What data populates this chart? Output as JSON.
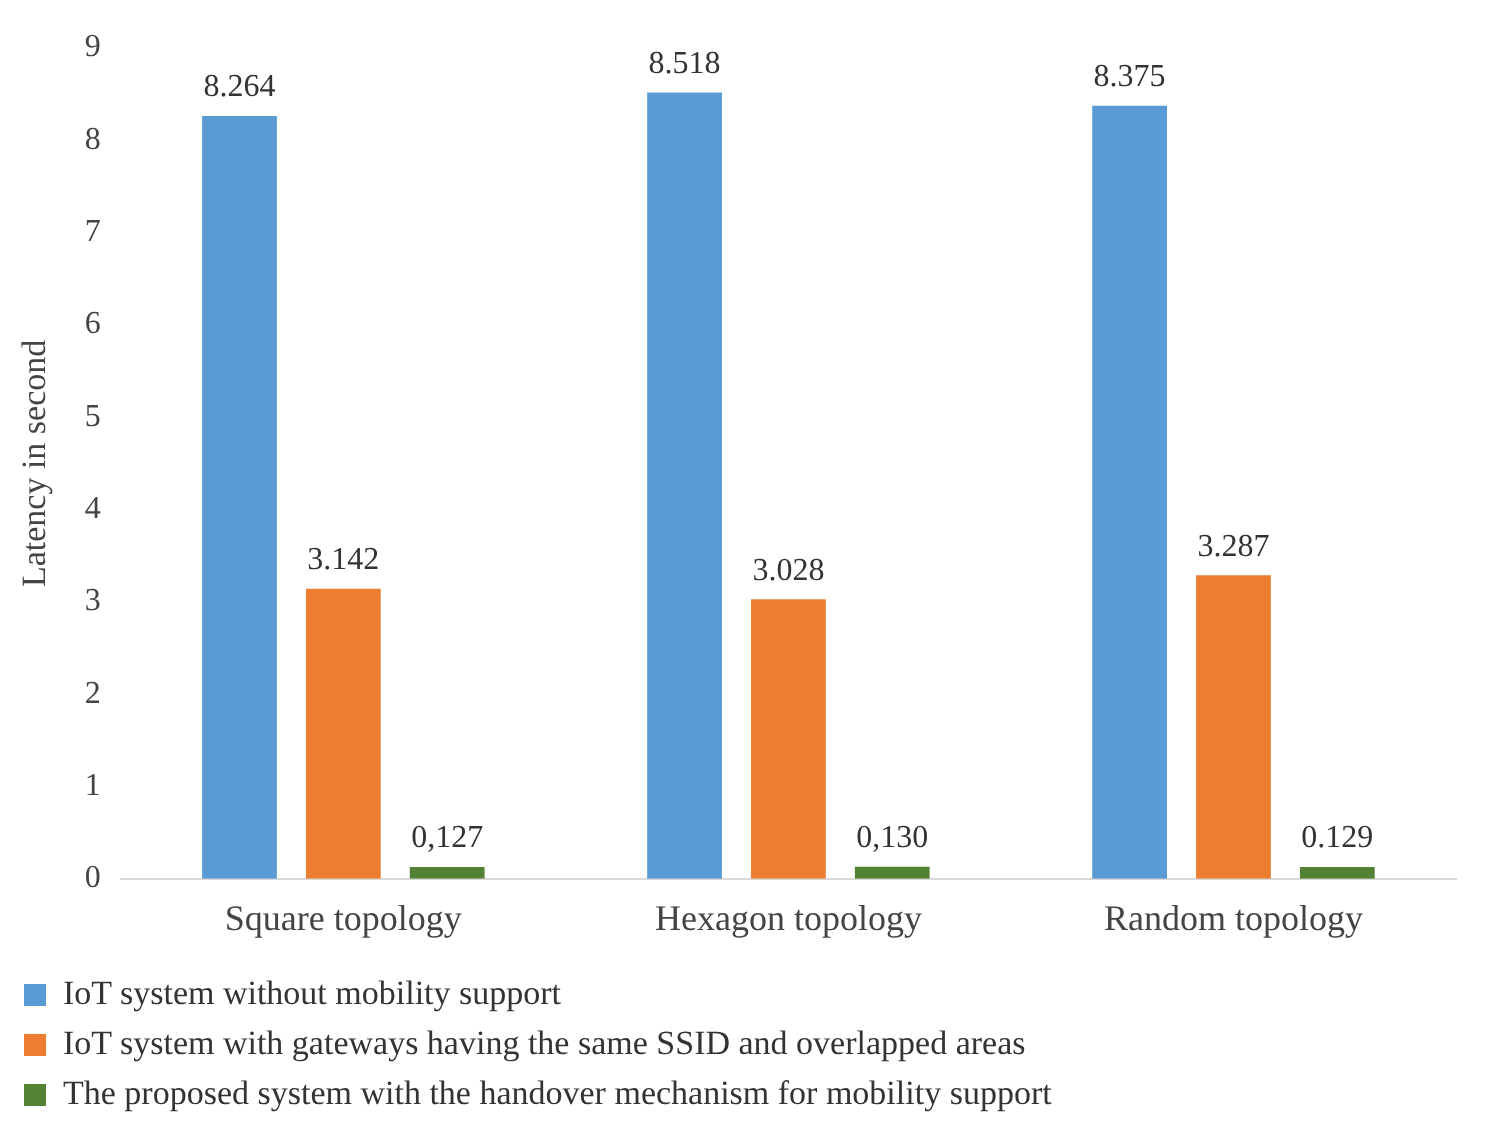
{
  "chart_data": {
    "type": "bar",
    "ylabel": "Latency in second",
    "categories": [
      "Square topology",
      "Hexagon topology",
      "Random topology"
    ],
    "series": [
      {
        "name": "IoT system without mobility support",
        "color": "#5b9bd5",
        "values": [
          8.264,
          8.518,
          8.375
        ]
      },
      {
        "name": "IoT system with gateways having the same SSID and overlapped areas",
        "color": "#ed7d31",
        "values": [
          3.142,
          3.028,
          3.287
        ]
      },
      {
        "name": "The proposed system with the handover mechanism for mobility support",
        "color": "#548235",
        "values": [
          0.127,
          0.13,
          0.129
        ],
        "value_labels": [
          "0,127",
          "0,130",
          "0.129"
        ]
      }
    ],
    "data_labels": true,
    "ylim": [
      0,
      9
    ],
    "yticks": [
      0,
      1,
      2,
      3,
      4,
      5,
      6,
      7,
      8,
      9
    ],
    "legend": "bottom"
  }
}
